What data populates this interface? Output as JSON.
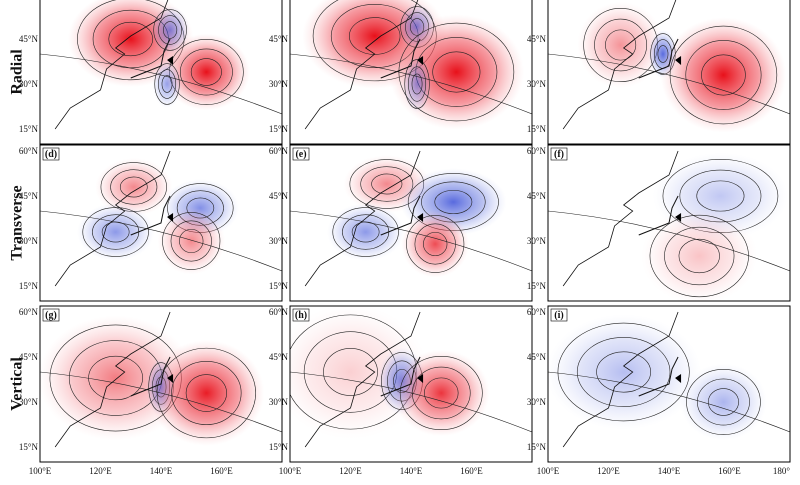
{
  "row_labels": [
    "Radial",
    "Transverse",
    "Vertical"
  ],
  "panel_labels": [
    "(d)",
    "(e)",
    "(f)",
    "(g)",
    "(h)",
    "(i)"
  ],
  "lat_labels": [
    "15°N",
    "30°N",
    "45°N",
    "60°N"
  ],
  "lon_labels": [
    "100°E",
    "120°E",
    "140°E",
    "160°E",
    "180°"
  ]
}
